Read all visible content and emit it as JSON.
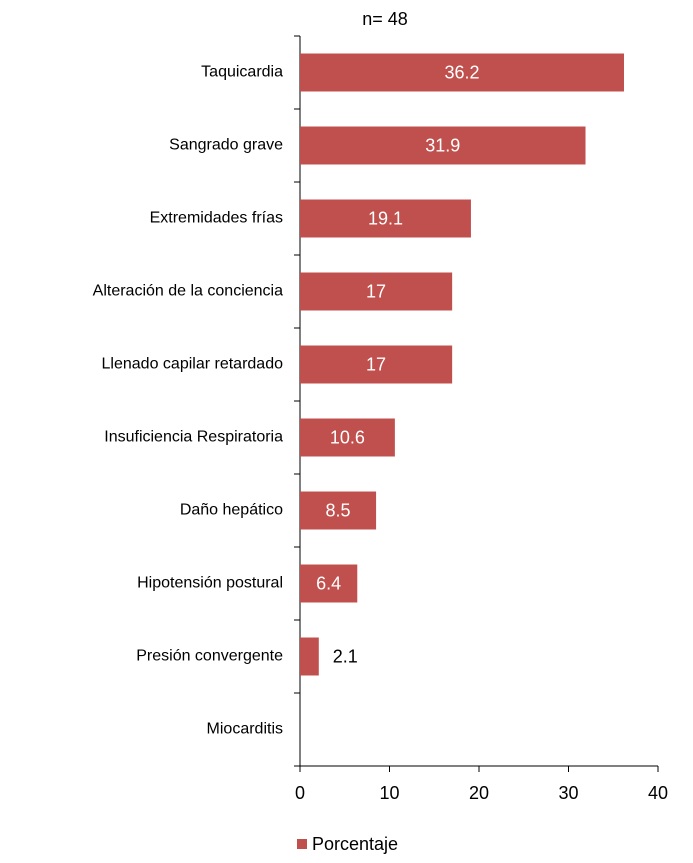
{
  "chart_data": {
    "type": "bar",
    "orientation": "horizontal",
    "title": "n= 48",
    "categories": [
      "Taquicardia",
      "Sangrado grave",
      "Extremidades frías",
      "Alteración de la conciencia",
      "Llenado capilar retardado",
      "Insuficiencia Respiratoria",
      "Daño hepático",
      "Hipotensión postural",
      "Presión convergente",
      "Miocarditis"
    ],
    "series": [
      {
        "name": "Porcentaje",
        "color": "#c0504d",
        "values": [
          36.2,
          31.9,
          19.1,
          17,
          17,
          10.6,
          8.5,
          6.4,
          2.1,
          0
        ]
      }
    ],
    "xlim": [
      0,
      40
    ],
    "xticks": [
      0,
      10,
      20,
      30,
      40
    ],
    "legend": "bottom"
  }
}
